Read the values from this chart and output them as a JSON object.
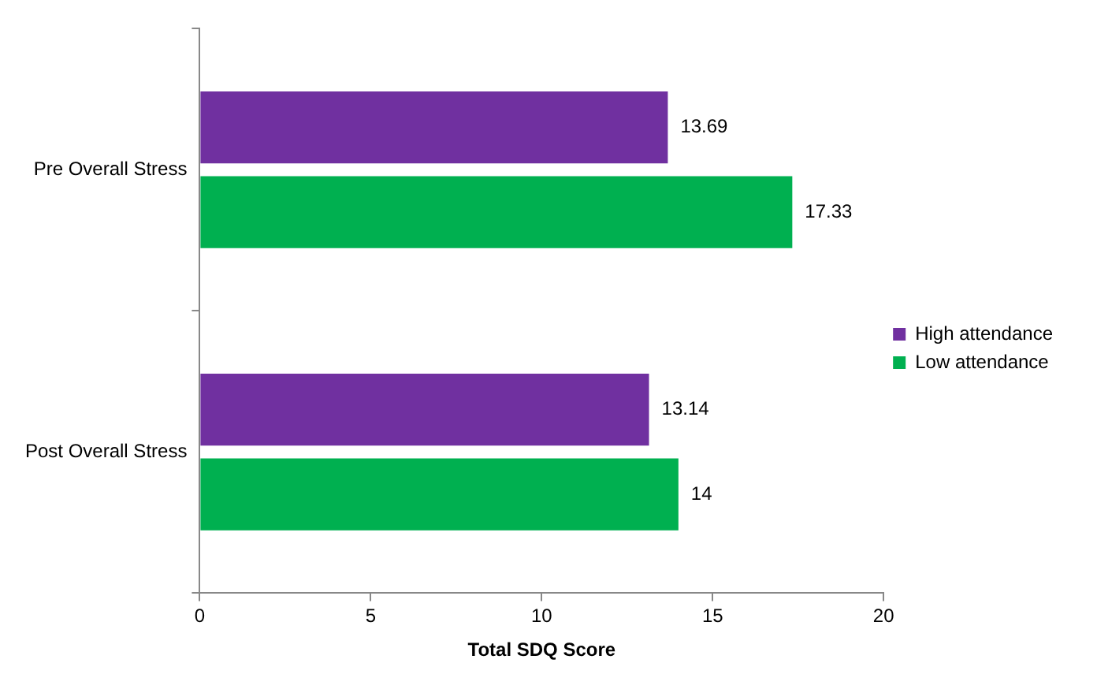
{
  "chart_data": {
    "type": "bar",
    "orientation": "horizontal",
    "xlabel": "Total SDQ Score",
    "categories": [
      "Pre Overall Stress",
      "Post Overall Stress"
    ],
    "series": [
      {
        "name": "High attendance",
        "color": "#7030a0",
        "values": [
          13.69,
          13.14
        ]
      },
      {
        "name": "Low attendance",
        "color": "#00b050",
        "values": [
          17.33,
          14
        ]
      }
    ],
    "xlim": [
      0,
      20
    ],
    "xticks": [
      0,
      5,
      10,
      15,
      20
    ],
    "grid": false,
    "legend": "right",
    "data_labels": true
  }
}
